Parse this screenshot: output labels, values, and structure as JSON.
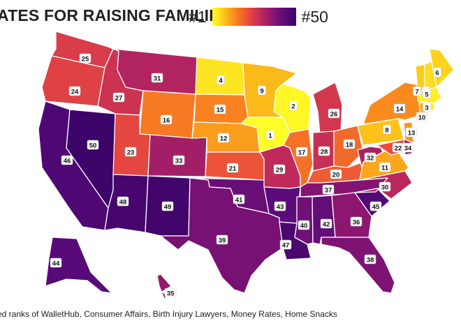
{
  "title": "ATES FOR RAISING FAMILIES",
  "legend": {
    "min_label": "#1",
    "max_label": "#50"
  },
  "footer": "ed ranks of WalletHub, Consumer Affairs, Birth Injury Lawyers, Money Rates, Home Snacks",
  "colors": {
    "rank_low": "#ffff28",
    "rank_high": "#3d0469"
  },
  "states": [
    {
      "id": "WA",
      "rank": 25
    },
    {
      "id": "OR",
      "rank": 24
    },
    {
      "id": "CA",
      "rank": 46
    },
    {
      "id": "NV",
      "rank": 50
    },
    {
      "id": "ID",
      "rank": 27
    },
    {
      "id": "MT",
      "rank": 31
    },
    {
      "id": "WY",
      "rank": 16
    },
    {
      "id": "UT",
      "rank": 23
    },
    {
      "id": "AZ",
      "rank": 48
    },
    {
      "id": "CO",
      "rank": 33
    },
    {
      "id": "NM",
      "rank": 49
    },
    {
      "id": "ND",
      "rank": 4
    },
    {
      "id": "SD",
      "rank": 15
    },
    {
      "id": "NE",
      "rank": 12
    },
    {
      "id": "KS",
      "rank": 21
    },
    {
      "id": "OK",
      "rank": 41
    },
    {
      "id": "TX",
      "rank": 39
    },
    {
      "id": "MN",
      "rank": 9
    },
    {
      "id": "IA",
      "rank": 1
    },
    {
      "id": "MO",
      "rank": 29
    },
    {
      "id": "AR",
      "rank": 43
    },
    {
      "id": "LA",
      "rank": 47
    },
    {
      "id": "WI",
      "rank": 2
    },
    {
      "id": "IL",
      "rank": 17
    },
    {
      "id": "MI",
      "rank": 26
    },
    {
      "id": "IN",
      "rank": 28
    },
    {
      "id": "OH",
      "rank": 18
    },
    {
      "id": "KY",
      "rank": 20
    },
    {
      "id": "TN",
      "rank": 37
    },
    {
      "id": "MS",
      "rank": 40
    },
    {
      "id": "AL",
      "rank": 42
    },
    {
      "id": "GA",
      "rank": 36
    },
    {
      "id": "FL",
      "rank": 38
    },
    {
      "id": "SC",
      "rank": 45
    },
    {
      "id": "NC",
      "rank": 30
    },
    {
      "id": "VA",
      "rank": 11
    },
    {
      "id": "WV",
      "rank": 32
    },
    {
      "id": "PA",
      "rank": 8
    },
    {
      "id": "NY",
      "rank": 14
    },
    {
      "id": "MD",
      "rank": 22
    },
    {
      "id": "DE",
      "rank": 34
    },
    {
      "id": "NJ",
      "rank": 13
    },
    {
      "id": "CT",
      "rank": 10
    },
    {
      "id": "RI",
      "rank": 3
    },
    {
      "id": "MA",
      "rank": 3
    },
    {
      "id": "VT",
      "rank": 7
    },
    {
      "id": "NH",
      "rank": 5
    },
    {
      "id": "ME",
      "rank": 6
    },
    {
      "id": "AK",
      "rank": 44
    },
    {
      "id": "HI",
      "rank": 35
    }
  ]
}
